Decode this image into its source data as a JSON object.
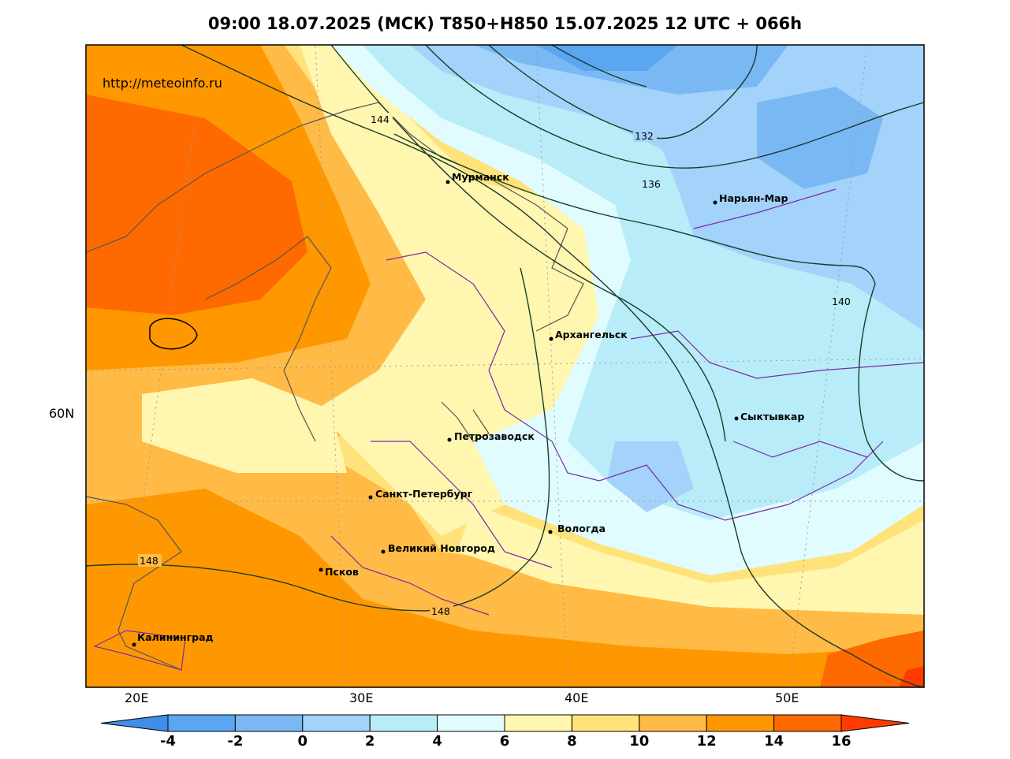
{
  "title": "09:00 18.07.2025 (МСК) T850+H850 15.07.2025 12 UTC + 066h",
  "url": "http://meteoinfo.ru",
  "lat_label": "60N",
  "lon_labels": [
    "20E",
    "30E",
    "40E",
    "50E"
  ],
  "cities": [
    {
      "name": "Мурманск"
    },
    {
      "name": "Нарьян-Мар"
    },
    {
      "name": "Архангельск"
    },
    {
      "name": "Сыктывкар"
    },
    {
      "name": "Петрозаводск"
    },
    {
      "name": "Санкт-Петербург"
    },
    {
      "name": "Вологда"
    },
    {
      "name": "Великий Новгород"
    },
    {
      "name": "Псков"
    },
    {
      "name": "Калининград"
    }
  ],
  "contour_labels": [
    "144",
    "132",
    "136",
    "140",
    "148",
    "148"
  ],
  "colorbar": {
    "ticks": [
      "-4",
      "-2",
      "0",
      "2",
      "4",
      "6",
      "8",
      "10",
      "12",
      "14",
      "16"
    ],
    "colors": [
      "#3f8fe8",
      "#5aa6f0",
      "#7ab8f4",
      "#a3d2fa",
      "#b9ecf9",
      "#e0fcff",
      "#fff6b0",
      "#ffe27a",
      "#ffbb45",
      "#ff9800",
      "#ff6a00",
      "#ff3c00"
    ]
  },
  "field_colors": {
    "bg": "#ffe27a",
    "warm": "#ff9800",
    "hot": "#ff6a00",
    "cold": "#a3d2fa",
    "cyan": "#b9ecf9"
  }
}
